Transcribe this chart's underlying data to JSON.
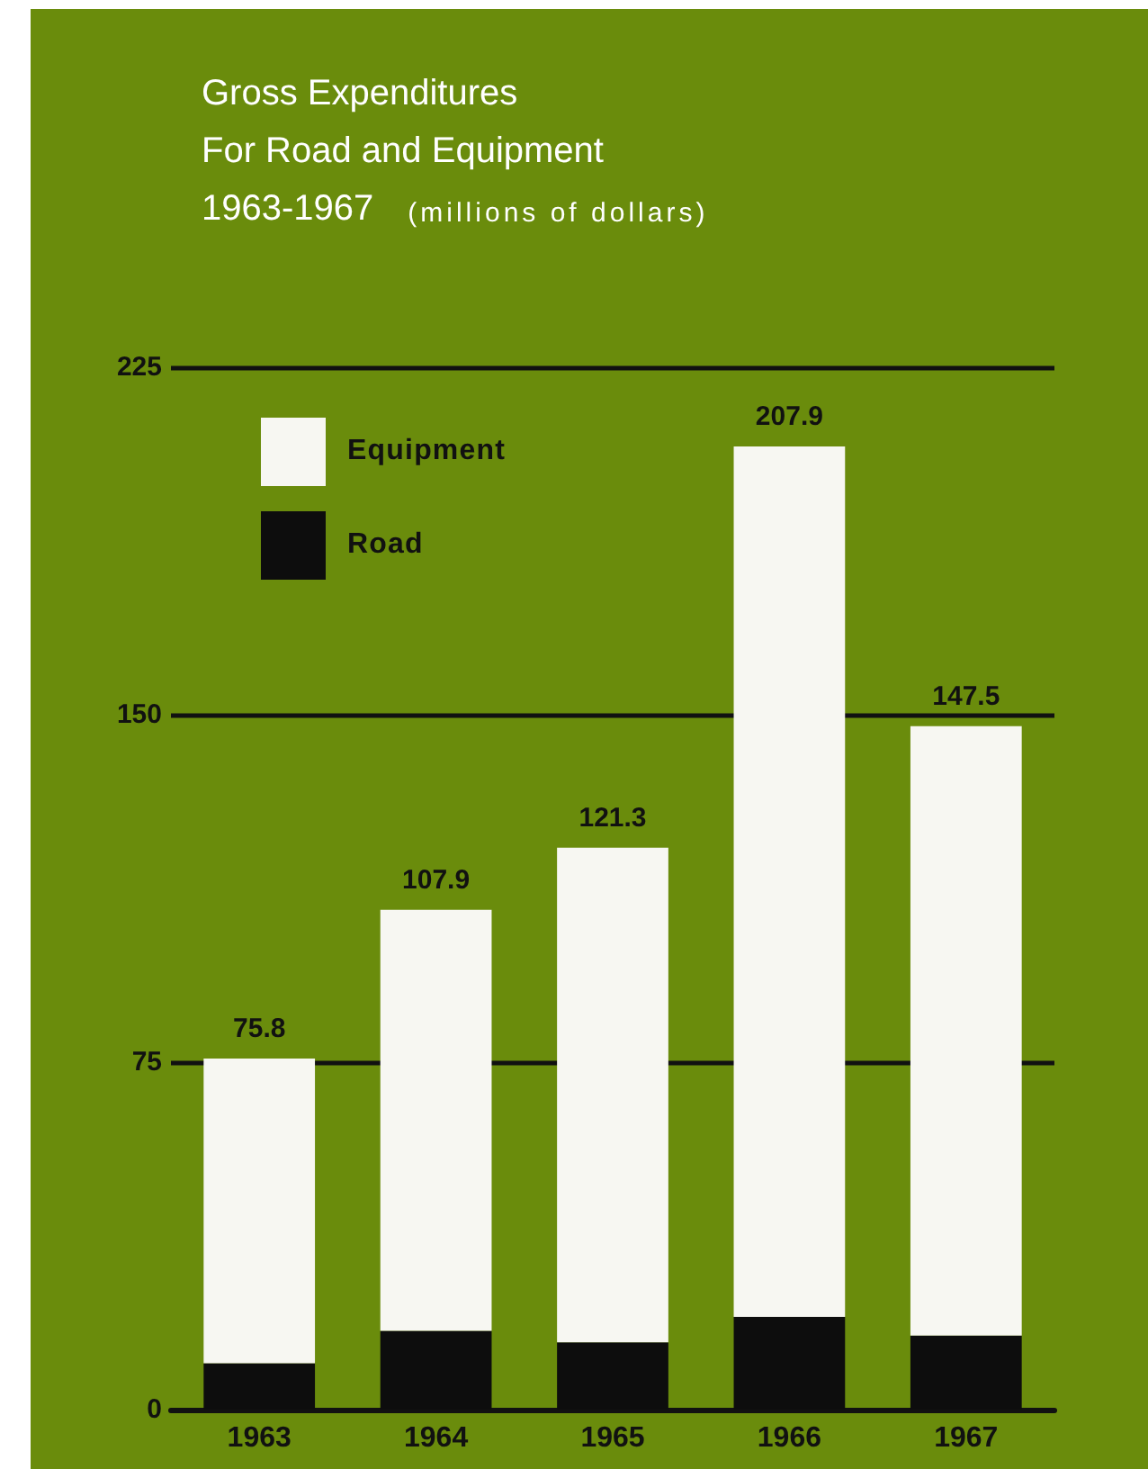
{
  "chart_data": {
    "type": "bar",
    "title": "Gross Expenditures\nFor Road and Equipment",
    "subtitle": "1963-1967",
    "annotations": [
      "(millions of dollars)"
    ],
    "categories": [
      "1963",
      "1964",
      "1965",
      "1966",
      "1967"
    ],
    "series": [
      {
        "name": "Road",
        "color": "#0d0d0d",
        "values": [
          10,
          17,
          14.5,
          20,
          16
        ]
      },
      {
        "name": "Equipment",
        "color": "#f7f7f2",
        "values": [
          65.8,
          90.9,
          106.8,
          187.9,
          131.5
        ]
      }
    ],
    "stacked": true,
    "totals": [
      "75.8",
      "107.9",
      "121.3",
      "207.9",
      "147.5"
    ],
    "ylim": [
      0,
      225
    ],
    "yticks": [
      0,
      75,
      150,
      225
    ],
    "grid": "y",
    "legend": "top left"
  }
}
